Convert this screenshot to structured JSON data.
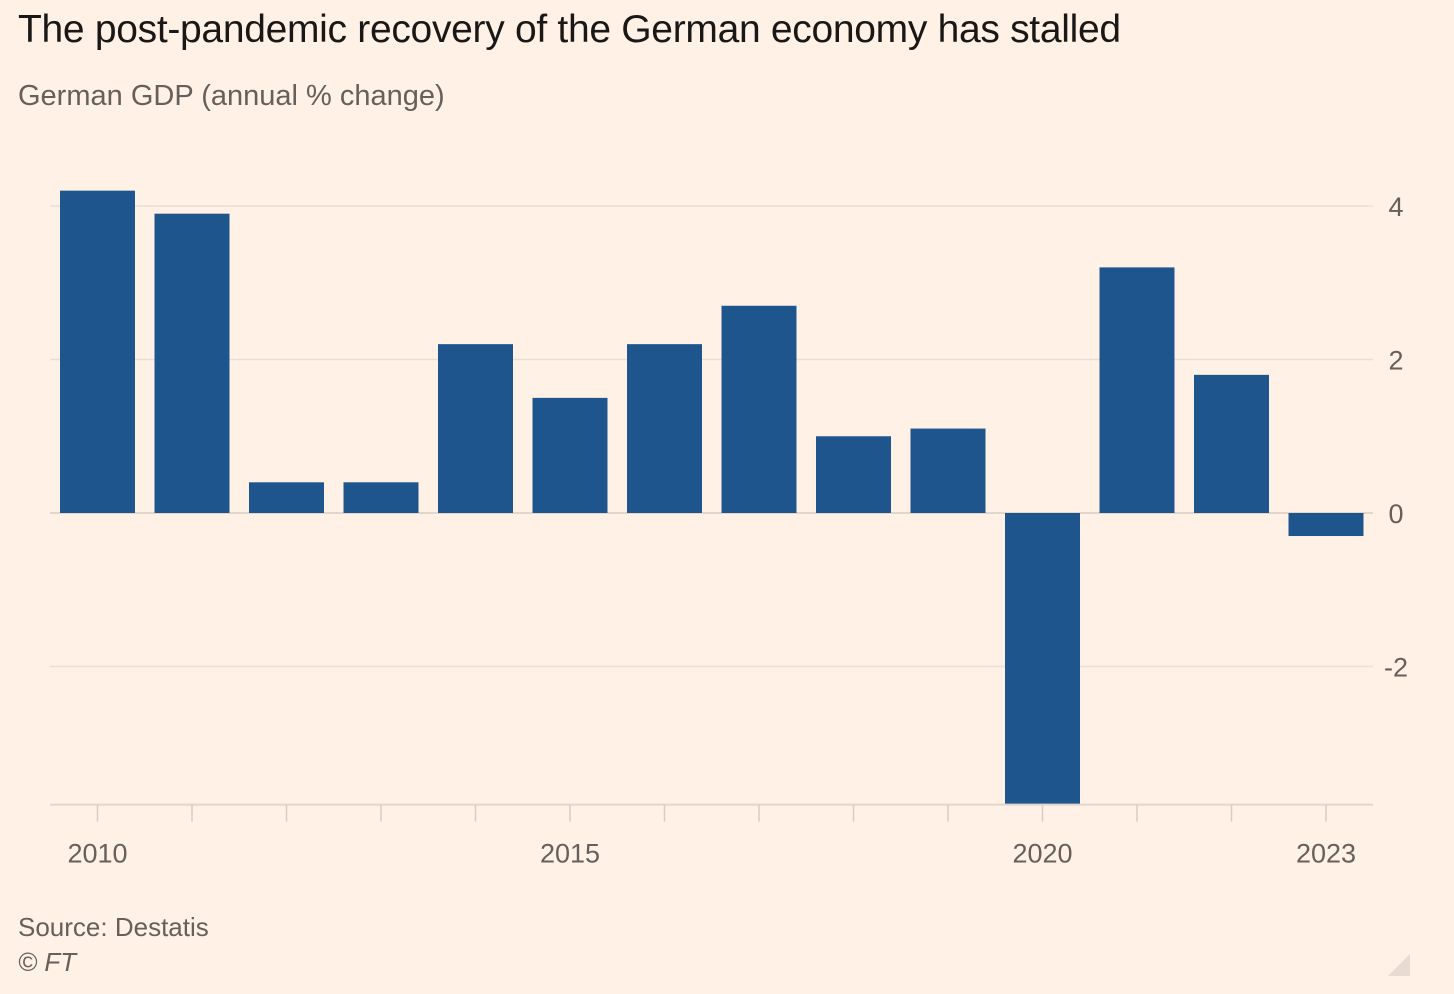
{
  "title": "The post-pandemic recovery of the German economy has stalled",
  "subtitle": "German GDP (annual % change)",
  "source": "Source: Destatis",
  "credit": "© FT",
  "colors": {
    "background": "#FFF1E5",
    "bar": "#1F558D",
    "grid": "#EADFD5",
    "tick_text": "#66605C"
  },
  "chart_data": {
    "type": "bar",
    "title": "The post-pandemic recovery of the German economy has stalled",
    "subtitle": "German GDP (annual % change)",
    "categories": [
      "2010",
      "2011",
      "2012",
      "2013",
      "2014",
      "2015",
      "2016",
      "2017",
      "2018",
      "2019",
      "2020",
      "2021",
      "2022",
      "2023"
    ],
    "values": [
      4.2,
      3.9,
      0.4,
      0.4,
      2.2,
      1.5,
      2.2,
      2.7,
      1.0,
      1.1,
      -3.8,
      3.2,
      1.8,
      -0.3
    ],
    "x_tick_labels": [
      "2010",
      "2015",
      "2020",
      "2023"
    ],
    "y_ticks": [
      4,
      2,
      0,
      -2
    ],
    "ylim": [
      -3.8,
      4.2
    ],
    "y_axis_side": "right",
    "grid": true,
    "legend": "none"
  }
}
